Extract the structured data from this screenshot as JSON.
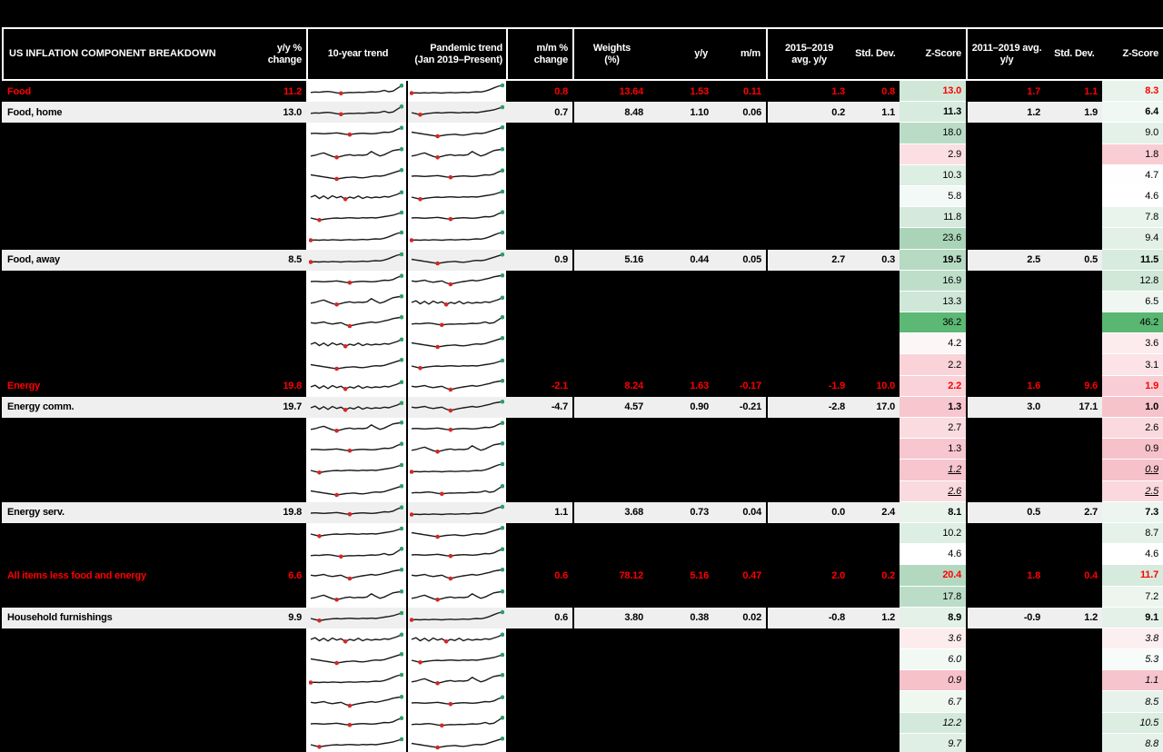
{
  "chart_data": {
    "type": "table",
    "header": {
      "title": "US INFLATION COMPONENT BREAKDOWN",
      "col_yy_change": "y/y %\nchange",
      "col_trend10": "10-year trend",
      "col_trend_pandemic": "Pandemic trend\n(Jan 2019–Present)",
      "col_mm_change": "m/m %\nchange",
      "col_weights": "Weights\n(%)",
      "col_yy": "y/y",
      "col_mm": "m/m",
      "col_avg_2015_2019": "2015–2019\navg. y/y",
      "col_std_dev_1": "Std. Dev.",
      "col_zscore_1": "Z-Score",
      "col_avg_2011_2019": "2011–2019 avg.\ny/y",
      "col_std_dev_2": "Std. Dev.",
      "col_zscore_2": "Z-Score"
    },
    "rows": [
      {
        "label": "Food",
        "type": "category",
        "yy_change": "11.2",
        "mm_change": "0.8",
        "weights": "13.64",
        "yy": "1.53",
        "mm": "0.11",
        "avg1": "1.3",
        "std1": "0.8",
        "z1": 13.0,
        "avg2": "1.7",
        "std2": "1.1",
        "z2": 8.3,
        "s1": 0,
        "s2": 5
      },
      {
        "label": "Food, home",
        "type": "named",
        "yy_change": "13.0",
        "mm_change": "0.7",
        "weights": "8.48",
        "yy": "1.10",
        "mm": "0.06",
        "avg1": "0.2",
        "std1": "1.1",
        "z1": 11.3,
        "avg2": "1.2",
        "std2": "1.9",
        "z2": 6.4,
        "s1": 0,
        "s2": 6
      },
      {
        "type": "hidden",
        "z1": 18.0,
        "z2": 9.0,
        "s1": 1,
        "s2": 4
      },
      {
        "type": "hidden",
        "z1": 2.9,
        "z2": 1.8,
        "s1": 3,
        "s2": 3
      },
      {
        "type": "hidden",
        "z1": 10.3,
        "z2": 4.7,
        "s1": 4,
        "s2": 1
      },
      {
        "type": "hidden",
        "z1": 5.8,
        "z2": 4.6,
        "s1": 2,
        "s2": 6
      },
      {
        "type": "hidden",
        "z1": 11.8,
        "z2": 7.8,
        "s1": 6,
        "s2": 1
      },
      {
        "type": "hidden",
        "z1": 23.6,
        "z2": 9.4,
        "s1": 5,
        "s2": 5
      },
      {
        "label": "Food, away",
        "type": "named",
        "yy_change": "8.5",
        "mm_change": "0.9",
        "weights": "5.16",
        "yy": "0.44",
        "mm": "0.05",
        "avg1": "2.7",
        "std1": "0.3",
        "z1": 19.5,
        "avg2": "2.5",
        "std2": "0.5",
        "z2": 11.5,
        "s1": 5,
        "s2": 4
      },
      {
        "type": "hidden",
        "z1": 16.9,
        "z2": 12.8,
        "s1": 1,
        "s2": 7
      },
      {
        "type": "hidden",
        "z1": 13.3,
        "z2": 6.5,
        "s1": 3,
        "s2": 2
      },
      {
        "type": "hidden",
        "z1": 36.2,
        "z2": 46.2,
        "s1": 7,
        "s2": 0
      },
      {
        "type": "hidden",
        "z1": 4.2,
        "z2": 3.6,
        "s1": 2,
        "s2": 4
      },
      {
        "type": "hidden",
        "z1": 2.2,
        "z2": 3.1,
        "s1": 4,
        "s2": 6
      },
      {
        "label": "Energy",
        "type": "category",
        "yy_change": "19.8",
        "mm_change": "-2.1",
        "weights": "8.24",
        "yy": "1.63",
        "mm": "-0.17",
        "avg1": "-1.9",
        "std1": "10.0",
        "z1": 2.2,
        "avg2": "1.6",
        "std2": "9.6",
        "z2": 1.9,
        "s1": 2,
        "s2": 7
      },
      {
        "label": "Energy comm.",
        "type": "named",
        "yy_change": "19.7",
        "mm_change": "-4.7",
        "weights": "4.57",
        "yy": "0.90",
        "mm": "-0.21",
        "avg1": "-2.8",
        "std1": "17.0",
        "z1": 1.3,
        "avg2": "3.0",
        "std2": "17.1",
        "z2": 1.0,
        "s1": 2,
        "s2": 7
      },
      {
        "type": "hidden",
        "z1": 2.7,
        "z2": 2.6,
        "s1": 3,
        "s2": 1
      },
      {
        "type": "hidden",
        "z1": 1.3,
        "z2": 0.9,
        "s1": 1,
        "s2": 3
      },
      {
        "type": "hidden",
        "z1": 1.2,
        "z2": 0.9,
        "zstyle": "italic-underline",
        "s1": 6,
        "s2": 5
      },
      {
        "type": "hidden",
        "z1": 2.6,
        "z2": 2.5,
        "zstyle": "italic-underline",
        "s1": 4,
        "s2": 0
      },
      {
        "label": "Energy serv.",
        "type": "named",
        "yy_change": "19.8",
        "mm_change": "1.1",
        "weights": "3.68",
        "yy": "0.73",
        "mm": "0.04",
        "avg1": "0.0",
        "std1": "2.4",
        "z1": 8.1,
        "avg2": "0.5",
        "std2": "2.7",
        "z2": 7.3,
        "s1": 1,
        "s2": 5
      },
      {
        "type": "hidden",
        "z1": 10.2,
        "z2": 8.7,
        "s1": 6,
        "s2": 4
      },
      {
        "type": "hidden",
        "z1": 4.6,
        "z2": 4.6,
        "s1": 0,
        "s2": 1
      },
      {
        "label": "All items less food and energy",
        "type": "category",
        "yy_change": "6.6",
        "mm_change": "0.6",
        "weights": "78.12",
        "yy": "5.16",
        "mm": "0.47",
        "avg1": "2.0",
        "std1": "0.2",
        "z1": 20.4,
        "avg2": "1.8",
        "std2": "0.4",
        "z2": 11.7,
        "s1": 7,
        "s2": 7
      },
      {
        "type": "hidden",
        "z1": 17.8,
        "z2": 7.2,
        "s1": 3,
        "s2": 3
      },
      {
        "label": "Household furnishings",
        "type": "named",
        "yy_change": "9.9",
        "mm_change": "0.6",
        "weights": "3.80",
        "yy": "0.38",
        "mm": "0.02",
        "avg1": "-0.8",
        "std1": "1.2",
        "z1": 8.9,
        "avg2": "-0.9",
        "std2": "1.2",
        "z2": 9.1,
        "s1": 6,
        "s2": 5
      },
      {
        "type": "hidden",
        "z1": 3.6,
        "z2": 3.8,
        "zstyle": "italic",
        "s1": 2,
        "s2": 2
      },
      {
        "type": "hidden",
        "z1": 6.0,
        "z2": 5.3,
        "zstyle": "italic",
        "s1": 4,
        "s2": 6
      },
      {
        "type": "hidden",
        "z1": 0.9,
        "z2": 1.1,
        "zstyle": "italic",
        "s1": 5,
        "s2": 3
      },
      {
        "type": "hidden",
        "z1": 6.7,
        "z2": 8.5,
        "zstyle": "italic",
        "s1": 7,
        "s2": 1
      },
      {
        "type": "hidden",
        "z1": 12.2,
        "z2": 10.5,
        "zstyle": "italic",
        "s1": 1,
        "s2": 0
      },
      {
        "type": "hidden",
        "z1": 9.7,
        "z2": 8.8,
        "zstyle": "italic",
        "s1": 6,
        "s2": 4
      }
    ],
    "spark_shapes": [
      [
        0.45,
        0.48,
        0.46,
        0.5,
        0.52,
        0.48,
        0.42,
        0.38,
        0.42,
        0.45,
        0.44,
        0.46,
        0.45,
        0.47,
        0.5,
        0.48,
        0.52,
        0.6,
        0.5,
        0.55,
        0.75,
        0.95
      ],
      [
        0.5,
        0.52,
        0.5,
        0.48,
        0.5,
        0.52,
        0.55,
        0.5,
        0.45,
        0.42,
        0.47,
        0.5,
        0.52,
        0.5,
        0.48,
        0.5,
        0.55,
        0.6,
        0.58,
        0.65,
        0.8,
        0.92
      ],
      [
        0.5,
        0.62,
        0.4,
        0.58,
        0.38,
        0.6,
        0.45,
        0.55,
        0.35,
        0.5,
        0.42,
        0.58,
        0.4,
        0.52,
        0.44,
        0.5,
        0.46,
        0.55,
        0.5,
        0.6,
        0.7,
        0.85
      ],
      [
        0.45,
        0.5,
        0.6,
        0.68,
        0.55,
        0.42,
        0.35,
        0.42,
        0.5,
        0.55,
        0.48,
        0.52,
        0.5,
        0.55,
        0.78,
        0.6,
        0.45,
        0.55,
        0.7,
        0.85,
        0.9,
        0.95
      ],
      [
        0.6,
        0.55,
        0.5,
        0.45,
        0.4,
        0.35,
        0.3,
        0.35,
        0.4,
        0.42,
        0.45,
        0.4,
        0.38,
        0.42,
        0.48,
        0.52,
        0.5,
        0.55,
        0.65,
        0.75,
        0.85,
        0.95
      ],
      [
        0.4,
        0.42,
        0.4,
        0.43,
        0.41,
        0.44,
        0.42,
        0.4,
        0.43,
        0.45,
        0.42,
        0.44,
        0.46,
        0.44,
        0.47,
        0.5,
        0.48,
        0.55,
        0.65,
        0.78,
        0.9,
        0.97
      ],
      [
        0.5,
        0.42,
        0.35,
        0.4,
        0.45,
        0.48,
        0.5,
        0.47,
        0.5,
        0.52,
        0.5,
        0.48,
        0.52,
        0.5,
        0.53,
        0.5,
        0.55,
        0.6,
        0.65,
        0.7,
        0.8,
        0.9
      ],
      [
        0.55,
        0.5,
        0.55,
        0.6,
        0.5,
        0.45,
        0.5,
        0.55,
        0.4,
        0.3,
        0.38,
        0.45,
        0.5,
        0.55,
        0.6,
        0.55,
        0.6,
        0.68,
        0.75,
        0.85,
        0.9,
        0.95
      ]
    ],
    "z_color_stops": [
      [
        0,
        244,
        182,
        192
      ],
      [
        2,
        248,
        207,
        213
      ],
      [
        3,
        251,
        225,
        229
      ],
      [
        4.2,
        253,
        246,
        247
      ],
      [
        4.6,
        255,
        255,
        255
      ],
      [
        5.5,
        245,
        250,
        247
      ],
      [
        7,
        237,
        246,
        240
      ],
      [
        9,
        228,
        241,
        233
      ],
      [
        11,
        217,
        236,
        224
      ],
      [
        14,
        203,
        229,
        212
      ],
      [
        18,
        186,
        220,
        198
      ],
      [
        24,
        168,
        211,
        182
      ],
      [
        30,
        128,
        196,
        151
      ],
      [
        36,
        92,
        184,
        116
      ],
      [
        60,
        85,
        182,
        111
      ]
    ],
    "colors": {
      "background": "#000000",
      "category_text": "#ff0000",
      "named_row_bg": "#efefef",
      "spark_line": "#1a1a1a",
      "spark_low_marker": "#d32727",
      "spark_latest_marker": "#2e9e68",
      "header_text": "#ffffff"
    }
  }
}
